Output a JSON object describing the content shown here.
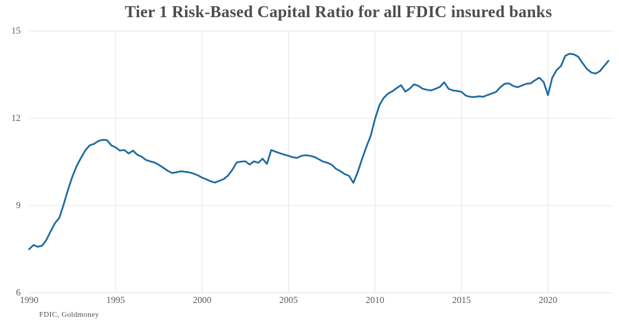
{
  "chart": {
    "title": "Tier 1 Risk-Based Capital Ratio for all FDIC insured banks",
    "source": "FDIC, Goldmoney"
  },
  "chart_data": {
    "type": "line",
    "title": "Tier 1 Risk-Based Capital Ratio for all FDIC insured banks",
    "xlabel": "",
    "ylabel": "",
    "source": "FDIC, Goldmoney",
    "grid": true,
    "legend": false,
    "line_color": "#1b689f",
    "grid_color": "#e6e6e6",
    "xlim": [
      1990,
      2023.75
    ],
    "ylim": [
      6,
      15
    ],
    "x_ticks": [
      1990,
      1995,
      2000,
      2005,
      2010,
      2015,
      2020
    ],
    "y_ticks": [
      6,
      9,
      12,
      15
    ],
    "x_start": 1990,
    "x_step_years": 0.25,
    "series": [
      {
        "name": "Tier 1 risk-based capital ratio (quarterly, %)",
        "values": [
          7.5,
          7.64,
          7.58,
          7.62,
          7.82,
          8.12,
          8.4,
          8.58,
          9.05,
          9.55,
          10.0,
          10.36,
          10.64,
          10.9,
          11.07,
          11.12,
          11.22,
          11.26,
          11.25,
          11.07,
          11.0,
          10.89,
          10.91,
          10.79,
          10.89,
          10.75,
          10.68,
          10.57,
          10.52,
          10.48,
          10.4,
          10.3,
          10.2,
          10.12,
          10.14,
          10.18,
          10.16,
          10.14,
          10.1,
          10.04,
          9.96,
          9.9,
          9.83,
          9.79,
          9.85,
          9.91,
          10.03,
          10.23,
          10.48,
          10.51,
          10.52,
          10.41,
          10.52,
          10.47,
          10.61,
          10.43,
          10.91,
          10.85,
          10.8,
          10.75,
          10.71,
          10.66,
          10.64,
          10.71,
          10.73,
          10.71,
          10.67,
          10.59,
          10.51,
          10.47,
          10.4,
          10.26,
          10.18,
          10.08,
          10.02,
          9.78,
          10.15,
          10.6,
          11.02,
          11.4,
          11.98,
          12.45,
          12.7,
          12.85,
          12.93,
          13.04,
          13.14,
          12.92,
          13.02,
          13.17,
          13.12,
          13.02,
          12.98,
          12.96,
          13.02,
          13.08,
          13.24,
          13.02,
          12.96,
          12.94,
          12.91,
          12.78,
          12.74,
          12.73,
          12.76,
          12.74,
          12.8,
          12.85,
          12.91,
          13.07,
          13.19,
          13.2,
          13.11,
          13.07,
          13.13,
          13.19,
          13.2,
          13.31,
          13.4,
          13.25,
          12.8,
          13.4,
          13.66,
          13.8,
          14.15,
          14.22,
          14.2,
          14.12,
          13.9,
          13.7,
          13.58,
          13.54,
          13.62,
          13.8,
          13.98
        ]
      }
    ]
  }
}
